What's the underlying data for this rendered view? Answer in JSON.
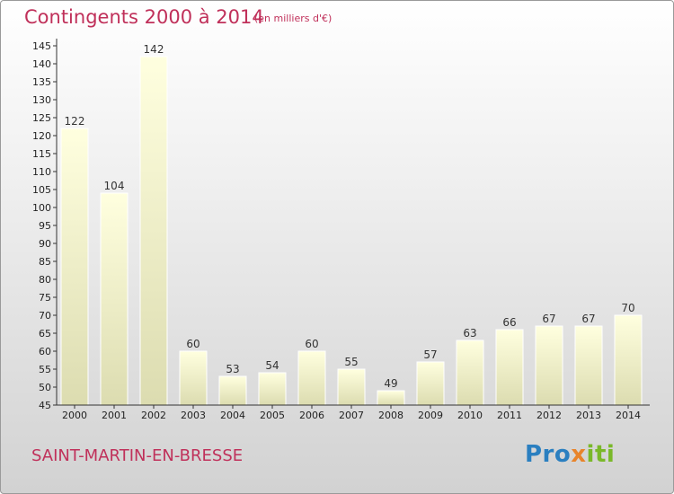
{
  "chart_data": {
    "type": "bar",
    "title": "Contingents 2000 à 2014",
    "subtitle": "(en milliers d'€)",
    "categories": [
      "2000",
      "2001",
      "2002",
      "2003",
      "2004",
      "2005",
      "2006",
      "2007",
      "2008",
      "2009",
      "2010",
      "2011",
      "2012",
      "2013",
      "2014"
    ],
    "values": [
      122,
      104,
      142,
      60,
      53,
      54,
      60,
      55,
      49,
      57,
      63,
      66,
      67,
      67,
      70
    ],
    "ylim": [
      45,
      145
    ],
    "ytick_step": 5,
    "grid": false,
    "xlabel": "",
    "ylabel": ""
  },
  "footer": {
    "town": "SAINT-MARTIN-EN-BRESSE",
    "logo": {
      "part1": "Pro",
      "part2": "x",
      "part3": "iti"
    }
  },
  "colors": {
    "title": "#c0305a",
    "bar_light": "#ffffdf",
    "bar_dark": "#dcdcb0",
    "axis": "#333333"
  }
}
